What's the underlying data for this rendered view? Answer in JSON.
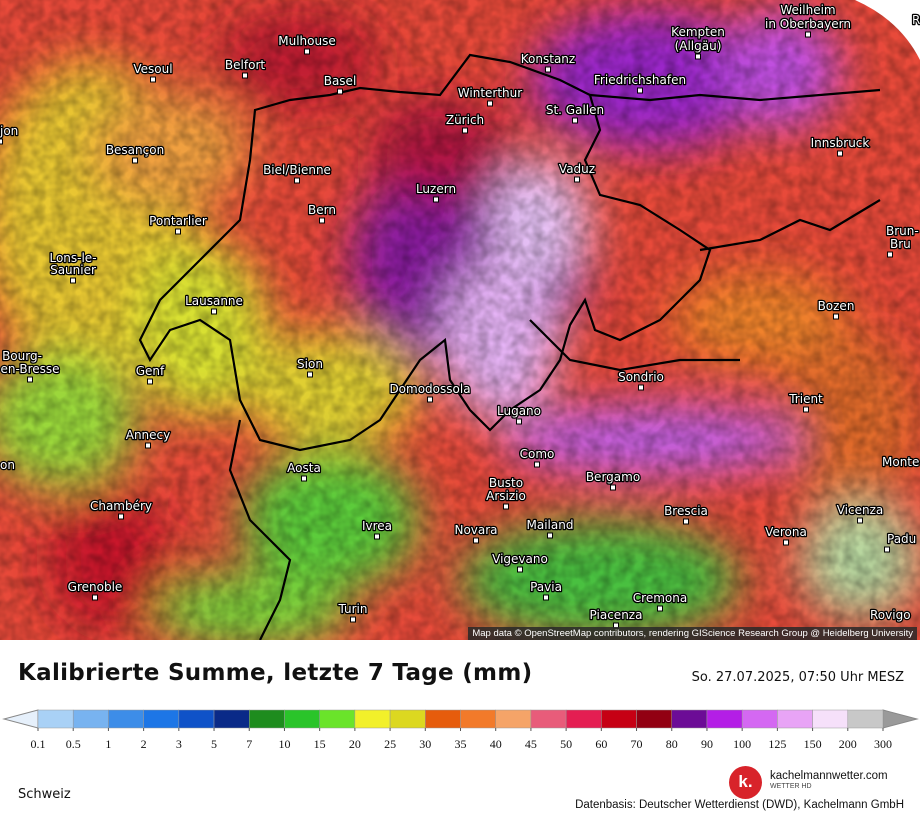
{
  "map": {
    "attribution": "Map data © OpenStreetMap contributors, rendering GIScience Research Group @ Heidelberg University",
    "cities": [
      "Weilheim",
      "in Oberbayern",
      "Ro",
      "Kempten",
      "(Allgäu)",
      "Mulhouse",
      "Konstanz",
      "Vesoul",
      "Belfort",
      "Friedrichshafen",
      "Basel",
      "Winterthur",
      "St. Gallen",
      "Zürich",
      "jon",
      "Innsbruck",
      "Besançon",
      "Vaduz",
      "Biel/Bienne",
      "Luzern",
      "Bern",
      "Pontarlier",
      "Brun-",
      "Bru",
      "Lons-le-",
      "Saunier",
      "Lausanne",
      "Bozen",
      "Bourg-",
      "en-Bresse",
      "Genf",
      "Sion",
      "Sondrio",
      "Domodossola",
      "Trient",
      "Lugano",
      "Annecy",
      "Como",
      "on",
      "Monte",
      "Aosta",
      "Bergamo",
      "Busto",
      "Arsizio",
      "Chambéry",
      "Brescia",
      "Vicenza",
      "Ivrea",
      "Mailand",
      "Novara",
      "Verona",
      "Padu",
      "Vigevano",
      "Grenoble",
      "Pavia",
      "Cremona",
      "Piacenza",
      "Turin",
      "Rovigo"
    ]
  },
  "title": "Kalibrierte Summe, letzte 7 Tage (mm)",
  "timestamp": "So. 27.07.2025, 07:50 Uhr MESZ",
  "legend": {
    "labels": [
      0.1,
      0.5,
      1,
      2,
      3,
      5,
      7,
      10,
      15,
      20,
      25,
      30,
      35,
      40,
      45,
      50,
      60,
      70,
      80,
      90,
      100,
      125,
      150,
      200,
      300
    ],
    "colors": [
      "#a9d1f6",
      "#78b3f0",
      "#3d8de8",
      "#1d76e6",
      "#0f52c8",
      "#0a2a88",
      "#1e8c1e",
      "#2ac42a",
      "#6ae42a",
      "#f2f02a",
      "#dcd820",
      "#e65c0c",
      "#f27a2a",
      "#f5a468",
      "#e85c7a",
      "#e41e52",
      "#c60014",
      "#920012",
      "#6c0c96",
      "#b41ee6",
      "#d468f2",
      "#e8a4f6",
      "#f6e0fa",
      "#c8c8c8"
    ],
    "under_color": "#e6f0fb",
    "over_color": "#9a9a9a"
  },
  "region": "Schweiz",
  "brand": {
    "logo": "k.",
    "name": "kachelmannwetter.com",
    "sub": "WETTER HD"
  },
  "source": "Datenbasis: Deutscher Wetterdienst (DWD), Kachelmann GmbH"
}
